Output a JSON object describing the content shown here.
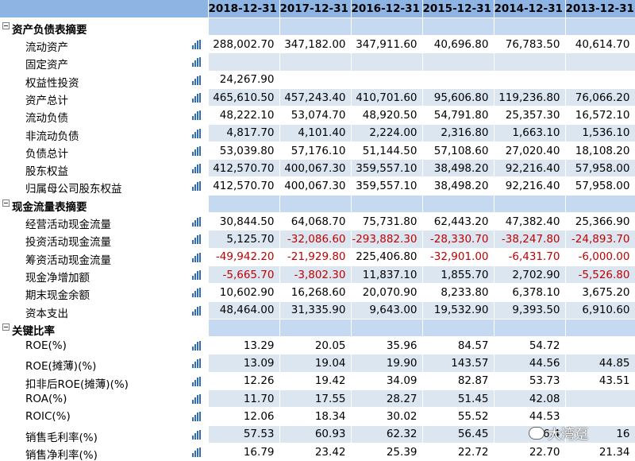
{
  "columns": [
    "2018-12-31",
    "2017-12-31",
    "2016-12-31",
    "2015-12-31",
    "2014-12-31",
    "2013-12-31"
  ],
  "sections": [
    {
      "title": "资产负债表摘要",
      "rows": [
        {
          "label": "流动资产",
          "values": [
            "288,002.70",
            "347,182.00",
            "347,911.60",
            "40,696.80",
            "76,783.50",
            "40,614.70"
          ]
        },
        {
          "label": "固定资产",
          "values": [
            "",
            "",
            "",
            "",
            "",
            ""
          ]
        },
        {
          "label": "权益性投资",
          "values": [
            "24,267.90",
            "",
            "",
            "",
            "",
            ""
          ]
        },
        {
          "label": "资产总计",
          "values": [
            "465,610.50",
            "457,243.40",
            "410,701.60",
            "95,606.80",
            "119,236.80",
            "76,066.20"
          ]
        },
        {
          "label": "流动负债",
          "values": [
            "48,222.10",
            "53,074.70",
            "48,920.50",
            "54,791.80",
            "25,357.30",
            "16,572.10"
          ]
        },
        {
          "label": "非流动负债",
          "values": [
            "4,817.70",
            "4,101.40",
            "2,224.00",
            "2,316.80",
            "1,663.10",
            "1,536.10"
          ]
        },
        {
          "label": "负债总计",
          "values": [
            "53,039.80",
            "57,176.10",
            "51,144.50",
            "57,108.60",
            "27,020.40",
            "18,108.20"
          ]
        },
        {
          "label": "股东权益",
          "values": [
            "412,570.70",
            "400,067.30",
            "359,557.10",
            "38,498.20",
            "92,216.40",
            "57,958.00"
          ]
        },
        {
          "label": "归属母公司股东权益",
          "values": [
            "412,570.70",
            "400,067.30",
            "359,557.10",
            "38,498.20",
            "92,216.40",
            "57,958.00"
          ]
        }
      ]
    },
    {
      "title": "现金流量表摘要",
      "rows": [
        {
          "label": "经营活动现金流量",
          "values": [
            "30,844.50",
            "64,068.70",
            "75,731.80",
            "62,443.20",
            "47,382.40",
            "25,366.90"
          ]
        },
        {
          "label": "投资活动现金流量",
          "values": [
            "5,125.70",
            "-32,086.60",
            "-293,882.30",
            "-28,330.70",
            "-38,247.80",
            "-24,893.70"
          ]
        },
        {
          "label": "筹资活动现金流量",
          "values": [
            "-49,942.20",
            "-21,929.80",
            "225,406.80",
            "-32,901.00",
            "-6,431.70",
            "-6,000.00"
          ]
        },
        {
          "label": "现金净增加额",
          "values": [
            "-5,665.70",
            "-3,802.30",
            "11,837.10",
            "1,855.70",
            "2,702.90",
            "-5,526.80"
          ]
        },
        {
          "label": "期末现金余额",
          "values": [
            "10,602.90",
            "16,268.60",
            "20,070.90",
            "8,233.80",
            "6,378.10",
            "3,675.20"
          ]
        },
        {
          "label": "资本支出",
          "values": [
            "48,464.00",
            "31,335.90",
            "9,643.00",
            "19,532.90",
            "9,393.50",
            "6,910.60"
          ]
        }
      ]
    },
    {
      "title": "关键比率",
      "rows": [
        {
          "label": "ROE(%)",
          "values": [
            "13.29",
            "20.05",
            "35.96",
            "84.57",
            "54.72",
            ""
          ]
        },
        {
          "label": "ROE(摊薄)(%)",
          "values": [
            "13.09",
            "19.04",
            "19.90",
            "143.57",
            "44.56",
            "44.85"
          ]
        },
        {
          "label": "扣非后ROE(摊薄)(%)",
          "values": [
            "12.26",
            "19.42",
            "34.09",
            "82.87",
            "53.73",
            "43.51"
          ]
        },
        {
          "label": "ROA(%)",
          "values": [
            "11.70",
            "17.55",
            "28.27",
            "51.45",
            "42.08",
            ""
          ]
        },
        {
          "label": "ROIC(%)",
          "values": [
            "12.06",
            "18.34",
            "30.02",
            "55.52",
            "44.53",
            ""
          ]
        },
        {
          "label": "销售毛利率(%)",
          "values": [
            "57.53",
            "60.93",
            "62.32",
            "56.45",
            "56.4",
            "16"
          ]
        },
        {
          "label": "销售净利率(%)",
          "values": [
            "16.79",
            "23.42",
            "25.39",
            "22.72",
            "22.70",
            "21.34"
          ]
        }
      ]
    }
  ],
  "watermark": {
    "text": "大湾趸",
    "icon": "wechat-icon"
  },
  "colors": {
    "header": "#8db4e2",
    "stripe": "#dce6f1",
    "section_fill": "#c5d9f1",
    "negative": "#c00000",
    "chart_icon": "#2e6db4"
  }
}
